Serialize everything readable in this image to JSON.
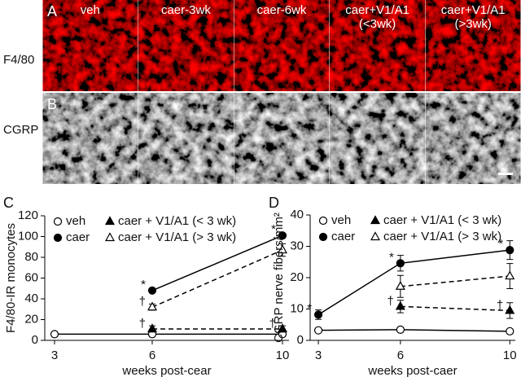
{
  "image_panels": {
    "rows": [
      {
        "letter": "A",
        "label": "F4/80"
      },
      {
        "letter": "B",
        "label": "CGRP"
      }
    ],
    "columns": [
      [
        "veh"
      ],
      [
        "caer-3wk"
      ],
      [
        "caer-6wk"
      ],
      [
        "caer+V1/A1",
        "(<3wk)"
      ],
      [
        "caer+V1/A1",
        "(>3wk)"
      ]
    ]
  },
  "chart_data": [
    {
      "type": "line",
      "letter": "C",
      "x_label": "weeks post-cear",
      "y_label": "F4/80-IR monocytes",
      "x": [
        3,
        6,
        10
      ],
      "xlim": [
        2.7,
        10.2
      ],
      "xticks": [
        3,
        6,
        10
      ],
      "ylim": [
        0,
        120
      ],
      "yticks": [
        0,
        20,
        40,
        60,
        80,
        100,
        120
      ],
      "series": [
        {
          "name": "veh",
          "marker": "circle",
          "filled": false,
          "dashed": false,
          "values": [
            6,
            6,
            6
          ],
          "errors": [
            1,
            1,
            1
          ],
          "point_labels": [
            null,
            null,
            null
          ]
        },
        {
          "name": "caer",
          "marker": "circle",
          "filled": true,
          "dashed": false,
          "values": [
            null,
            48,
            101
          ],
          "errors": [
            null,
            2,
            2
          ],
          "point_labels": [
            null,
            "*",
            "*"
          ]
        },
        {
          "name": "caer + V1/A1 (< 3 wk)",
          "marker": "triangle",
          "filled": true,
          "dashed": true,
          "values": [
            null,
            11,
            11
          ],
          "errors": [
            null,
            3,
            3
          ],
          "point_labels": [
            null,
            "†",
            "†"
          ]
        },
        {
          "name": "caer + V1/A1 (> 3 wk)",
          "marker": "triangle",
          "filled": false,
          "dashed": true,
          "values": [
            null,
            32,
            87
          ],
          "errors": [
            null,
            3,
            6
          ],
          "point_labels": [
            null,
            "†",
            null
          ]
        }
      ]
    },
    {
      "type": "line",
      "letter": "D",
      "x_label": "weeks post-caer",
      "y_label": "CGRP nerve fibers/mm²",
      "x": [
        3,
        6,
        10
      ],
      "xlim": [
        2.7,
        10.2
      ],
      "xticks": [
        3,
        6,
        10
      ],
      "ylim": [
        0,
        40
      ],
      "yticks": [
        0,
        10,
        20,
        30,
        40
      ],
      "series": [
        {
          "name": "veh",
          "marker": "circle",
          "filled": false,
          "dashed": false,
          "values": [
            3.2,
            3.4,
            2.9
          ],
          "errors": [
            0.4,
            0.4,
            0.4
          ],
          "point_labels": [
            null,
            null,
            null
          ]
        },
        {
          "name": "caer",
          "marker": "circle",
          "filled": true,
          "dashed": false,
          "values": [
            8.2,
            24.6,
            28.8
          ],
          "errors": [
            1.5,
            2.5,
            3
          ],
          "point_labels": [
            "*",
            "*",
            "*"
          ]
        },
        {
          "name": "caer + V1/A1 (< 3 wk)",
          "marker": "triangle",
          "filled": true,
          "dashed": true,
          "values": [
            null,
            10.8,
            9.5
          ],
          "errors": [
            null,
            2,
            2.5
          ],
          "point_labels": [
            null,
            "†",
            "†"
          ]
        },
        {
          "name": "caer + V1/A1 (> 3 wk)",
          "marker": "triangle",
          "filled": false,
          "dashed": true,
          "values": [
            null,
            17.2,
            20.5
          ],
          "errors": [
            null,
            3.5,
            4
          ],
          "point_labels": [
            null,
            null,
            null
          ]
        }
      ]
    }
  ]
}
